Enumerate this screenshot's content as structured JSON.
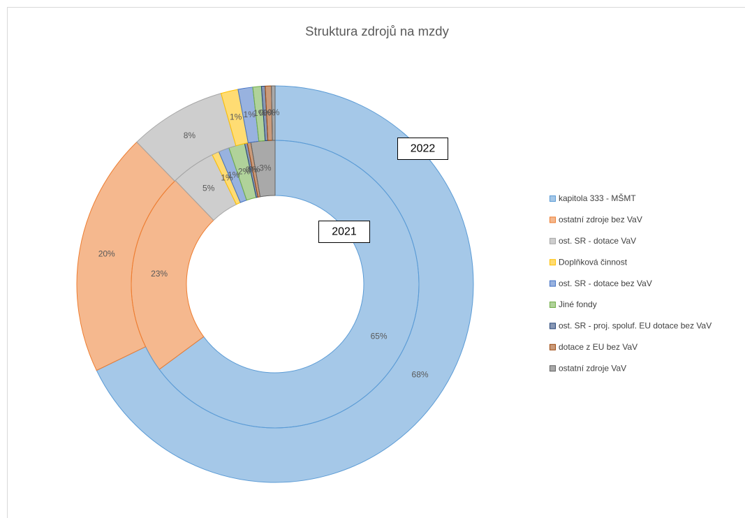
{
  "chart_data": {
    "type": "doughnut",
    "title": "Struktura zdrojů na mzdy",
    "categories": [
      "kapitola 333 - MŠMT",
      "ostatní zdroje bez VaV",
      "ost. SR - dotace VaV",
      "Doplňková činnost",
      "ost. SR - dotace bez VaV",
      "Jiné fondy",
      "ost. SR - proj. spoluf. EU dotace bez VaV",
      "dotace z EU bez VaV",
      "ostatní zdroje VaV"
    ],
    "colors": [
      "#5b9bd5",
      "#ed7d31",
      "#a5a5a5",
      "#ffc000",
      "#4472c4",
      "#70ad47",
      "#264478",
      "#9e480e",
      "#636363"
    ],
    "series": [
      {
        "name": "2021",
        "values": [
          64.9,
          22.9,
          5.0,
          0.8,
          1.2,
          1.8,
          0.3,
          0.4,
          2.7
        ],
        "value_labels": [
          "65%",
          "23%",
          "5%",
          "1%",
          "1%",
          "2%",
          "0%",
          "0%",
          "3%"
        ]
      },
      {
        "name": "2022",
        "values": [
          67.9,
          19.9,
          7.9,
          1.4,
          1.2,
          0.7,
          0.3,
          0.5,
          0.3
        ],
        "value_labels": [
          "68%",
          "20%",
          "8%",
          "1%",
          "1%",
          "1%",
          "0%",
          "0%",
          "0%"
        ]
      }
    ]
  }
}
